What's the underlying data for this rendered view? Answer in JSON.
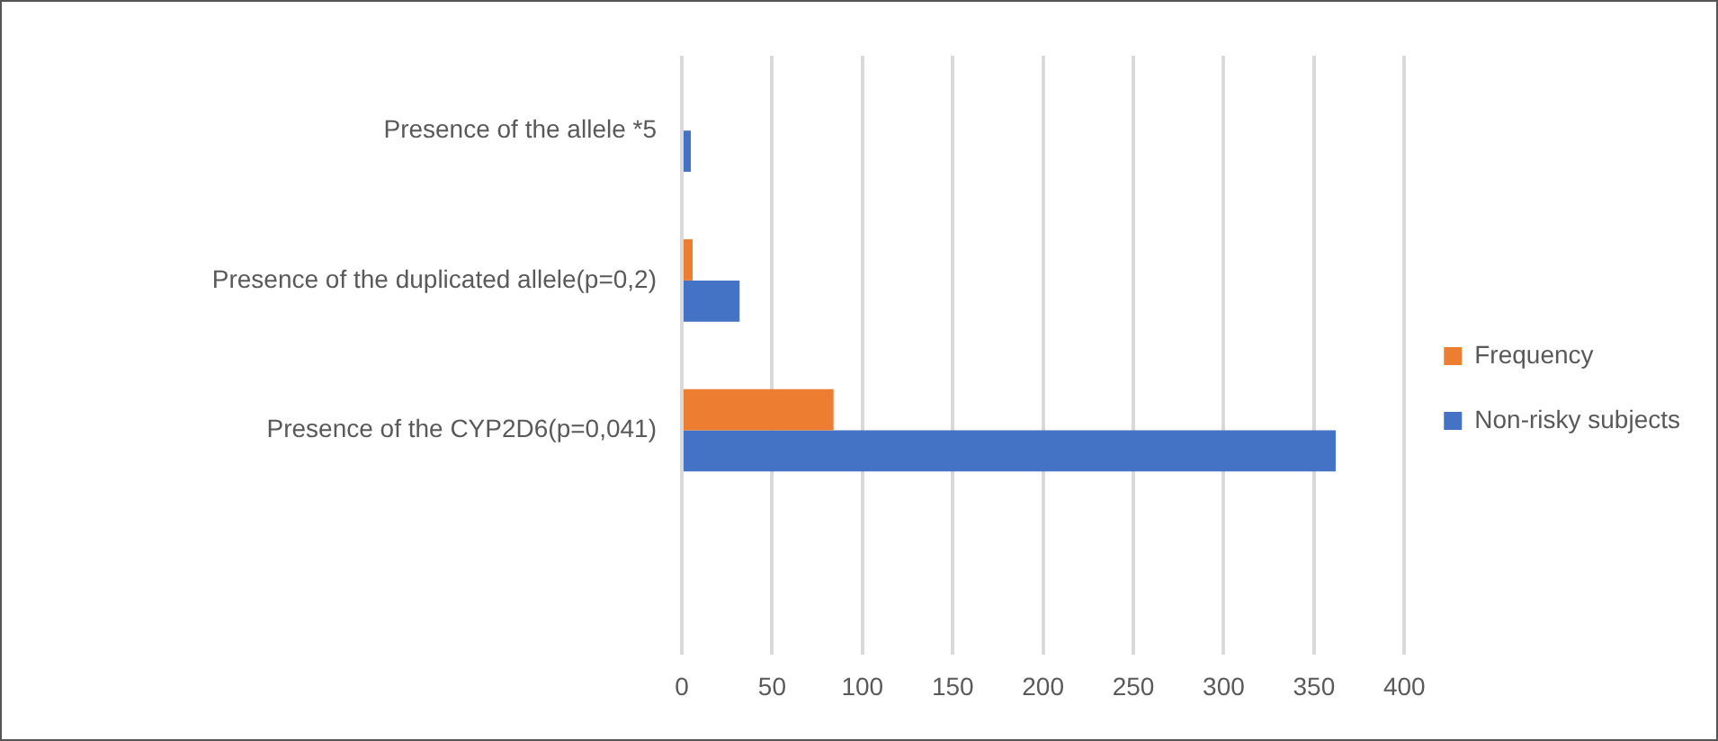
{
  "chart_data": {
    "type": "bar",
    "orientation": "horizontal",
    "categories": [
      "Presence of the allele *5",
      "Presence of the duplicated allele(p=0,2)",
      "Presence of the CYP2D6(p=0,041)",
      null
    ],
    "series": [
      {
        "name": "Frequency",
        "color": "#ed7d31",
        "values": [
          0,
          6,
          84,
          null
        ]
      },
      {
        "name": "Non-risky subjects",
        "color": "#4472c4",
        "values": [
          5,
          32,
          362,
          null
        ]
      }
    ],
    "xlim": [
      0,
      400
    ],
    "xticks": [
      0,
      50,
      100,
      150,
      200,
      250,
      300,
      350,
      400
    ],
    "grid": "x",
    "legend": "right"
  }
}
